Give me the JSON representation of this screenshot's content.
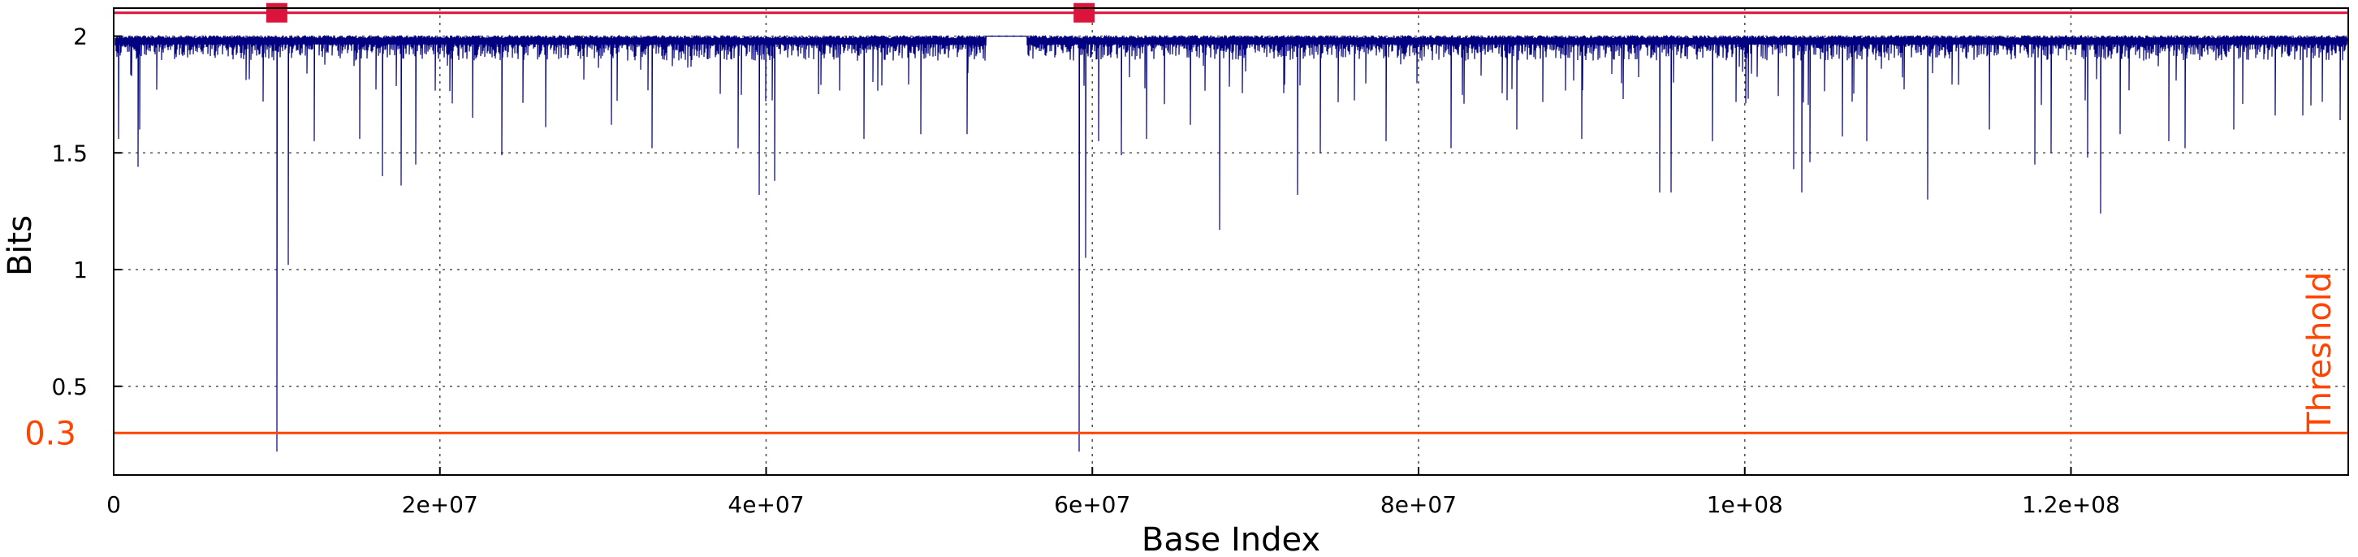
{
  "chart_data": {
    "type": "line",
    "title": "",
    "xlabel": "Base Index",
    "ylabel": "Bits",
    "xlim": [
      0,
      137000000
    ],
    "ylim": [
      0.12,
      2.12
    ],
    "grid": true,
    "x_ticks": [
      {
        "value": 0,
        "label": "0"
      },
      {
        "value": 20000000,
        "label": "2e+07"
      },
      {
        "value": 40000000,
        "label": "4e+07"
      },
      {
        "value": 60000000,
        "label": "6e+07"
      },
      {
        "value": 80000000,
        "label": "8e+07"
      },
      {
        "value": 100000000,
        "label": "1e+08"
      },
      {
        "value": 120000000,
        "label": "1.2e+08"
      }
    ],
    "y_ticks": [
      {
        "value": 0.5,
        "label": "0.5"
      },
      {
        "value": 1,
        "label": "1"
      },
      {
        "value": 1.5,
        "label": "1.5"
      },
      {
        "value": 2,
        "label": "2"
      }
    ],
    "series": [
      {
        "type": "line",
        "color": "#000080",
        "baseline": 2.0,
        "gap": [
          53500000,
          56000000
        ],
        "dips": [
          [
            300000,
            1.56
          ],
          [
            1500000,
            1.44
          ],
          [
            1600000,
            1.6
          ],
          [
            10000000,
            0.22
          ],
          [
            10700000,
            1.02
          ],
          [
            12300000,
            1.55
          ],
          [
            15100000,
            1.56
          ],
          [
            16500000,
            1.4
          ],
          [
            17600000,
            1.36
          ],
          [
            18500000,
            1.45
          ],
          [
            22000000,
            1.65
          ],
          [
            23800000,
            1.49
          ],
          [
            26500000,
            1.61
          ],
          [
            30500000,
            1.62
          ],
          [
            33000000,
            1.52
          ],
          [
            38300000,
            1.52
          ],
          [
            39600000,
            1.32
          ],
          [
            40500000,
            1.38
          ],
          [
            46000000,
            1.56
          ],
          [
            49500000,
            1.58
          ],
          [
            52300000,
            1.58
          ],
          [
            59200000,
            0.22
          ],
          [
            59600000,
            1.05
          ],
          [
            60400000,
            1.55
          ],
          [
            61800000,
            1.49
          ],
          [
            63300000,
            1.56
          ],
          [
            66000000,
            1.62
          ],
          [
            67800000,
            1.17
          ],
          [
            72600000,
            1.32
          ],
          [
            74000000,
            1.5
          ],
          [
            78000000,
            1.55
          ],
          [
            82000000,
            1.52
          ],
          [
            86000000,
            1.6
          ],
          [
            90000000,
            1.56
          ],
          [
            94800000,
            1.33
          ],
          [
            95500000,
            1.33
          ],
          [
            98000000,
            1.55
          ],
          [
            103000000,
            1.43
          ],
          [
            103500000,
            1.33
          ],
          [
            104000000,
            1.46
          ],
          [
            106000000,
            1.57
          ],
          [
            107500000,
            1.55
          ],
          [
            111200000,
            1.3
          ],
          [
            115000000,
            1.6
          ],
          [
            117800000,
            1.45
          ],
          [
            118800000,
            1.5
          ],
          [
            121000000,
            1.48
          ],
          [
            121800000,
            1.24
          ],
          [
            123000000,
            1.58
          ],
          [
            126000000,
            1.55
          ],
          [
            127000000,
            1.52
          ],
          [
            130000000,
            1.6
          ],
          [
            132500000,
            1.66
          ],
          [
            134200000,
            1.66
          ],
          [
            136500000,
            1.64
          ]
        ]
      },
      {
        "type": "line",
        "name": "Threshold",
        "color": "#ff4500",
        "y": 0.3,
        "label": "Threshold",
        "y_label": "0.3"
      },
      {
        "type": "line",
        "color": "#dc143c",
        "y": 2.1,
        "markers": [
          {
            "x": 10000000,
            "y": 2.1
          },
          {
            "x": 59500000,
            "y": 2.1
          }
        ]
      }
    ]
  }
}
